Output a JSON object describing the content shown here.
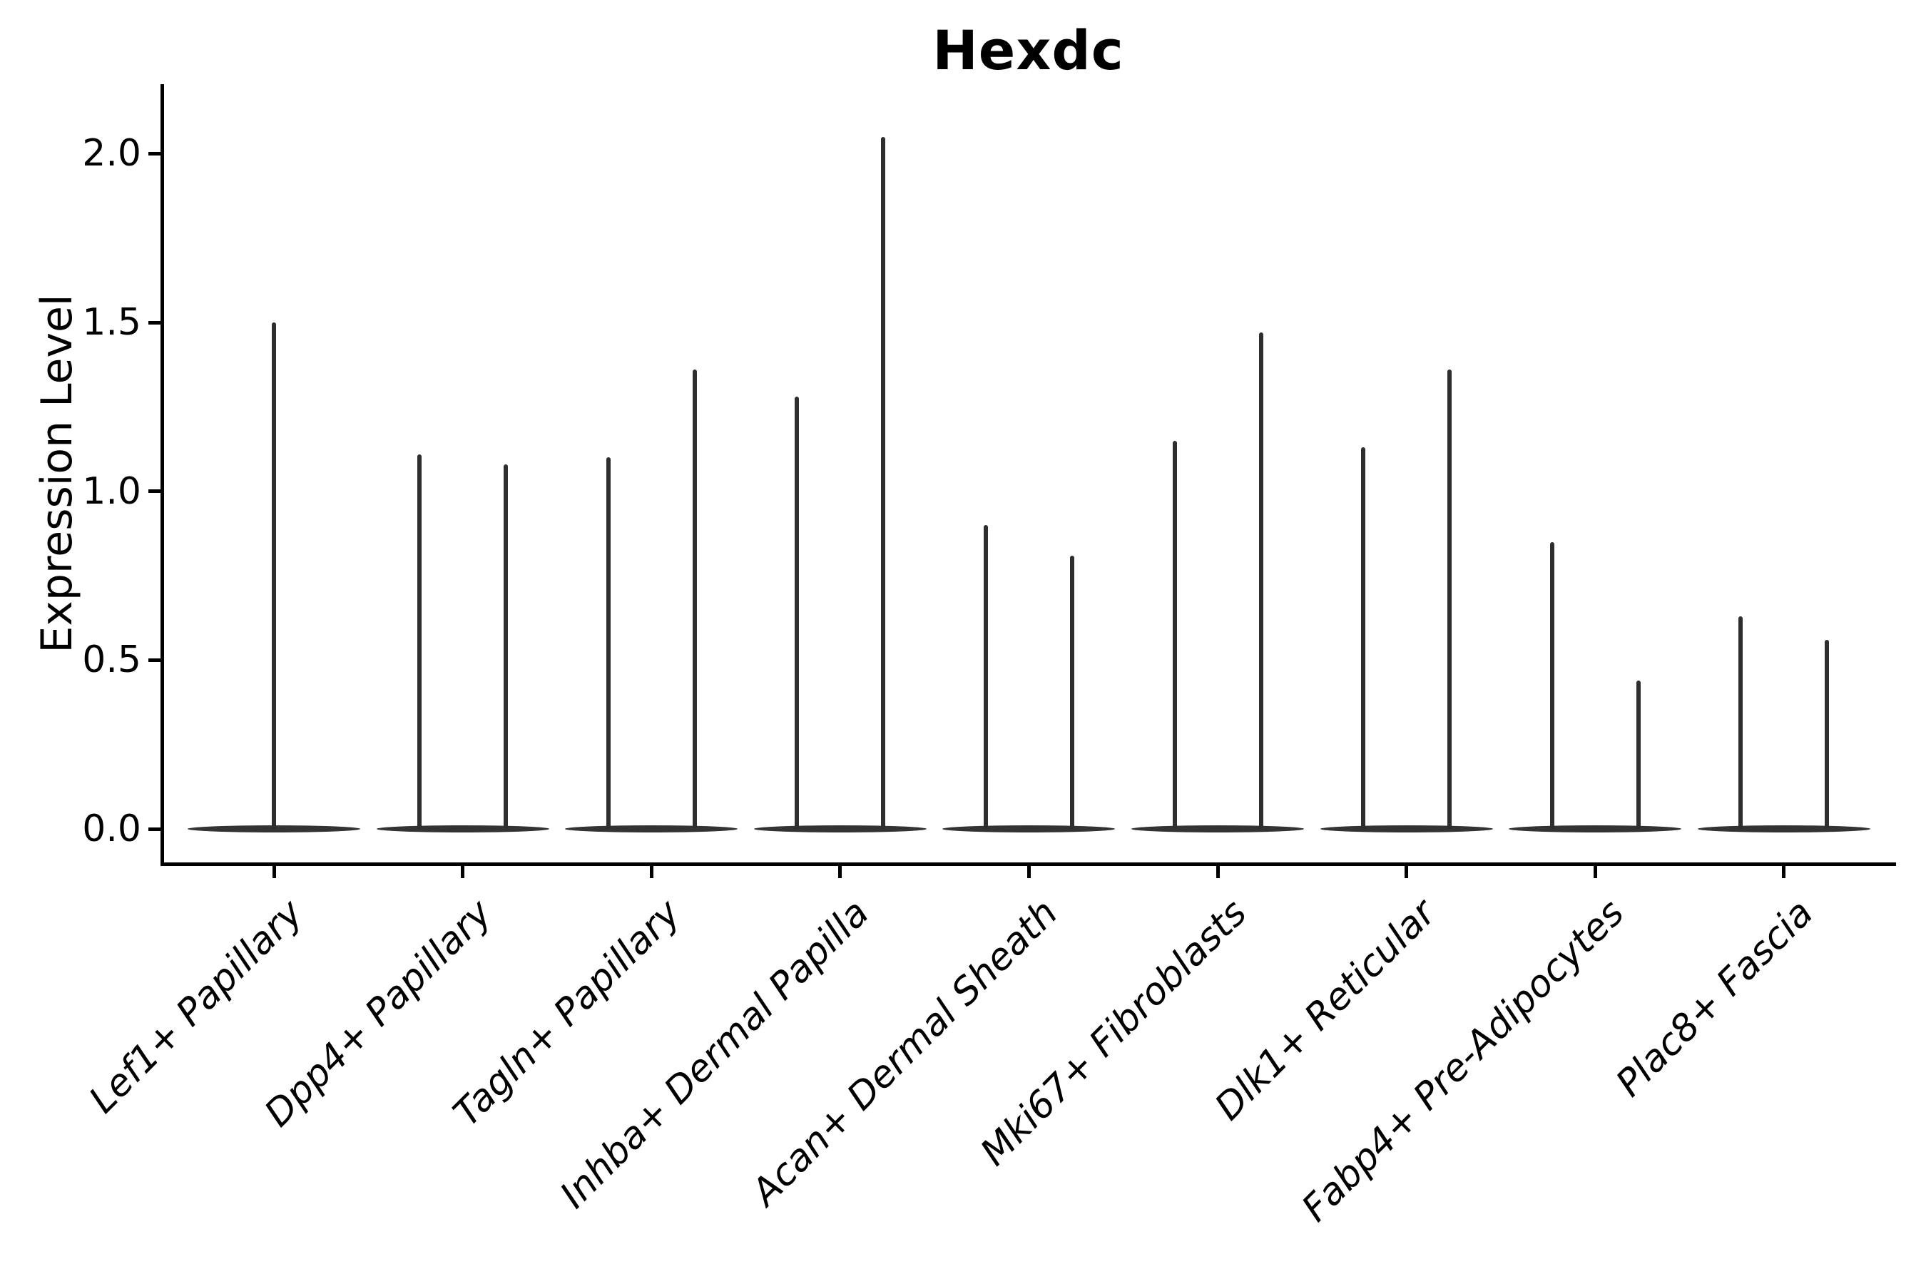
{
  "title": "Hexdc",
  "ylabel": "Expression Level",
  "colors": {
    "background": "#ffffff",
    "axis": "#000000",
    "text": "#000000",
    "violin": "#333333"
  },
  "chart_data": {
    "type": "violin",
    "title": "Hexdc",
    "xlabel": "",
    "ylabel": "Expression Level",
    "ylim": [
      -0.1,
      2.2
    ],
    "yticks": [
      "0.0",
      "0.5",
      "1.0",
      "1.5",
      "2.0"
    ],
    "grid": false,
    "legend": null,
    "baseline_value": 0.0,
    "categories": [
      "Lef1+ Papillary",
      "Dpp4+ Papillary",
      "Tagln+ Papillary",
      "Inhba+ Dermal Papilla",
      "Acan+ Dermal Sheath",
      "Mki67+ Fibroblasts",
      "Dlk1+ Reticular",
      "Fabp4+ Pre-Adipocytes",
      "Plac8+ Fascia"
    ],
    "groups": [
      {
        "category": "Lef1+ Papillary",
        "violin_maxima": [
          1.5
        ]
      },
      {
        "category": "Dpp4+ Papillary",
        "violin_maxima": [
          1.11,
          1.08
        ]
      },
      {
        "category": "Tagln+ Papillary",
        "violin_maxima": [
          1.1,
          1.36
        ]
      },
      {
        "category": "Inhba+ Dermal Papilla",
        "violin_maxima": [
          1.28,
          2.05
        ]
      },
      {
        "category": "Acan+ Dermal Sheath",
        "violin_maxima": [
          0.9,
          0.81
        ]
      },
      {
        "category": "Mki67+ Fibroblasts",
        "violin_maxima": [
          1.15,
          1.47
        ]
      },
      {
        "category": "Dlk1+ Reticular",
        "violin_maxima": [
          1.13,
          1.36
        ]
      },
      {
        "category": "Fabp4+ Pre-Adipocytes",
        "violin_maxima": [
          0.85,
          0.44
        ]
      },
      {
        "category": "Plac8+ Fascia",
        "violin_maxima": [
          0.63,
          0.56
        ]
      }
    ]
  }
}
